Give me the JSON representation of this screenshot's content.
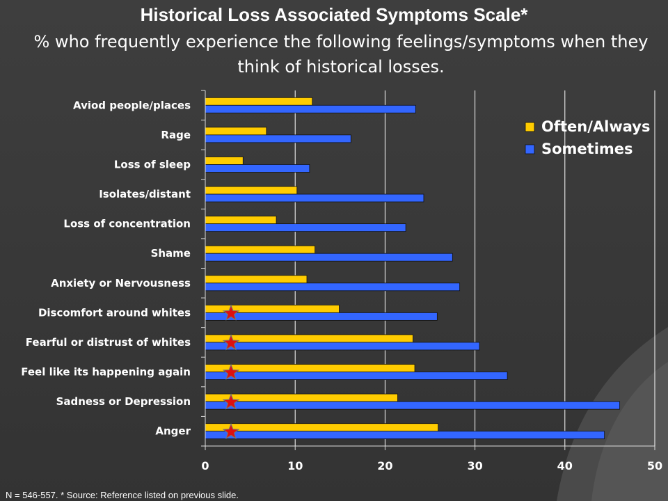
{
  "title": "Historical Loss Associated Symptoms Scale*",
  "subtitle": "% who frequently experience the following feelings/symptoms when they think of historical losses.",
  "footnote": "N = 546-557.  * Source:  Reference listed on previous slide.",
  "colors": {
    "often": "#ffcc00",
    "sometimes": "#3366ff",
    "star_fill": "#dd1111",
    "star_outline": "#777777",
    "grid": "#ffffff",
    "background": "#3a3a3a"
  },
  "starred_categories": [
    "Discomfort around whites",
    "Fearful or distrust of whites",
    "Feel like its happening again",
    "Sadness or Depression",
    "Anger"
  ],
  "chart_data": {
    "type": "bar",
    "orientation": "horizontal",
    "categories": [
      "Aviod people/places",
      "Rage",
      "Loss of sleep",
      "Isolates/distant",
      "Loss of concentration",
      "Shame",
      "Anxiety or Nervousness",
      "Discomfort around whites",
      "Fearful or distrust of whites",
      "Feel like its happening again",
      "Sadness or Depression",
      "Anger"
    ],
    "series": [
      {
        "name": "Often/Always",
        "values": [
          11.9,
          6.8,
          4.2,
          10.2,
          7.9,
          12.2,
          11.3,
          14.9,
          23.1,
          23.3,
          21.4,
          25.9
        ]
      },
      {
        "name": "Sometimes",
        "values": [
          23.4,
          16.2,
          11.6,
          24.3,
          22.3,
          27.5,
          28.3,
          25.8,
          30.5,
          33.6,
          46.1,
          44.4
        ]
      }
    ],
    "xlim": [
      0,
      50
    ],
    "xticks": [
      0,
      10,
      20,
      30,
      40,
      50
    ],
    "grid": true,
    "legend": "top-right"
  }
}
